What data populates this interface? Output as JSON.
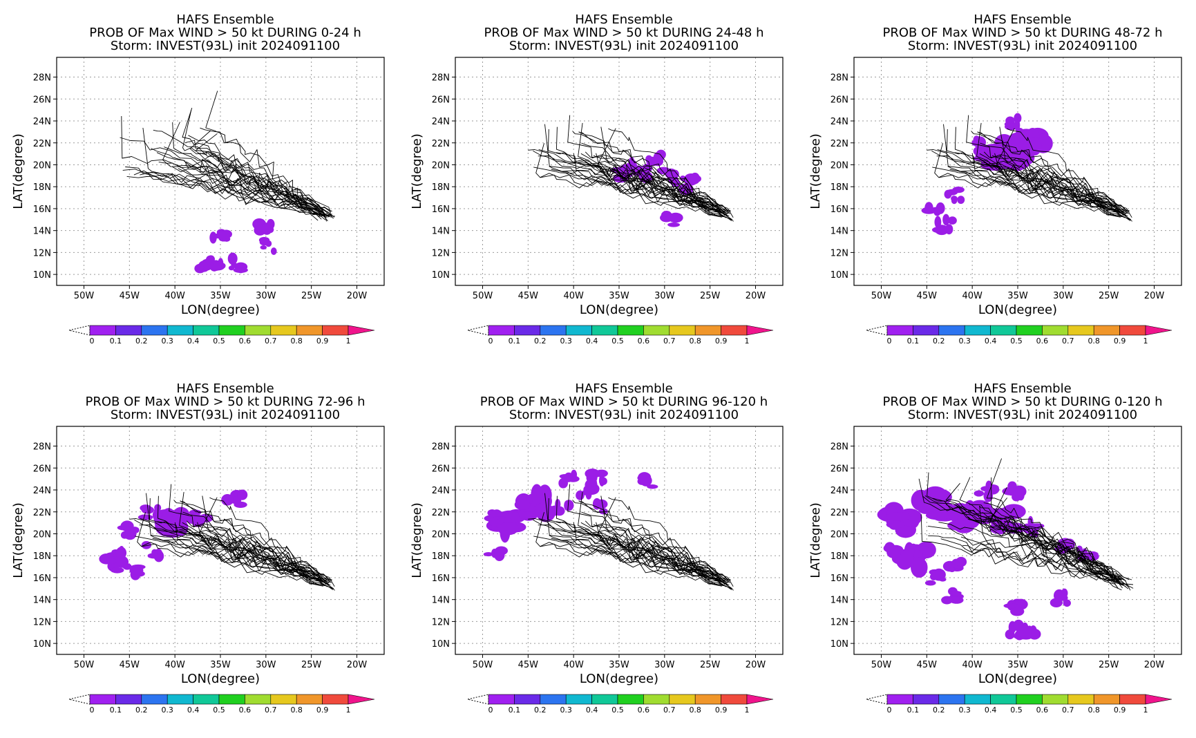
{
  "chart_data": [
    {
      "type": "heatmap",
      "title": "HAFS Ensemble",
      "subtitle": "PROB OF Max WIND > 50 kt DURING  0-24 h",
      "storm": "Storm: INVEST(93L) init 2024091100",
      "xlabel": "LON(degree)",
      "ylabel": "LAT(degree)",
      "xlim": [
        -53,
        -17
      ],
      "ylim": [
        9,
        29.8
      ],
      "xticks": [
        "50W",
        "45W",
        "40W",
        "35W",
        "30W",
        "25W",
        "20W"
      ],
      "yticks": [
        "10N",
        "12N",
        "14N",
        "16N",
        "18N",
        "20N",
        "22N",
        "24N",
        "26N",
        "28N"
      ],
      "grid": true,
      "prob_regions": [
        {
          "lon": -35.2,
          "lat": 11.2,
          "prob": 0.05
        },
        {
          "lon": -35.0,
          "lat": 13.3,
          "prob": 0.05
        },
        {
          "lon": -33.5,
          "lat": 10.9,
          "prob": 0.05
        },
        {
          "lon": -36.8,
          "lat": 10.9,
          "prob": 0.05
        },
        {
          "lon": -30.2,
          "lat": 14.3,
          "prob": 0.05
        },
        {
          "lon": -29.5,
          "lat": 12.6,
          "prob": 0.05
        }
      ]
    },
    {
      "type": "heatmap",
      "title": "HAFS Ensemble",
      "subtitle": "PROB OF Max WIND > 50 kt DURING 24-48 h",
      "storm": "Storm: INVEST(93L) init 2024091100",
      "xlabel": "LON(degree)",
      "ylabel": "LAT(degree)",
      "xlim": [
        -53,
        -17
      ],
      "ylim": [
        9,
        29.8
      ],
      "xticks": [
        "50W",
        "45W",
        "40W",
        "35W",
        "30W",
        "25W",
        "20W"
      ],
      "yticks": [
        "10N",
        "12N",
        "14N",
        "16N",
        "18N",
        "20N",
        "22N",
        "24N",
        "26N",
        "28N"
      ],
      "grid": true,
      "prob_regions": [
        {
          "lon": -33.5,
          "lat": 20.2,
          "prob": 0.05
        },
        {
          "lon": -32.5,
          "lat": 19.2,
          "prob": 0.05
        },
        {
          "lon": -35.0,
          "lat": 19.1,
          "prob": 0.05
        },
        {
          "lon": -29.5,
          "lat": 18.9,
          "prob": 0.05
        },
        {
          "lon": -31.0,
          "lat": 20.6,
          "prob": 0.05
        },
        {
          "lon": -27.3,
          "lat": 18.3,
          "prob": 0.05
        },
        {
          "lon": -29.0,
          "lat": 15.0,
          "prob": 0.05
        }
      ]
    },
    {
      "type": "heatmap",
      "title": "HAFS Ensemble",
      "subtitle": "PROB OF Max WIND > 50 kt DURING 48-72 h",
      "storm": "Storm: INVEST(93L) init 2024091100",
      "xlabel": "LON(degree)",
      "ylabel": "LAT(degree)",
      "xlim": [
        -53,
        -17
      ],
      "ylim": [
        9,
        29.8
      ],
      "xticks": [
        "50W",
        "45W",
        "40W",
        "35W",
        "30W",
        "25W",
        "20W"
      ],
      "yticks": [
        "10N",
        "12N",
        "14N",
        "16N",
        "18N",
        "20N",
        "22N",
        "24N",
        "26N",
        "28N"
      ],
      "grid": true,
      "prob_regions": [
        {
          "lon": -35.5,
          "lat": 21.2,
          "prob": 0.08
        },
        {
          "lon": -37.5,
          "lat": 20.5,
          "prob": 0.08
        },
        {
          "lon": -33.6,
          "lat": 21.8,
          "prob": 0.08
        },
        {
          "lon": -39.0,
          "lat": 21.7,
          "prob": 0.05
        },
        {
          "lon": -35.5,
          "lat": 23.9,
          "prob": 0.05
        },
        {
          "lon": -44.0,
          "lat": 15.8,
          "prob": 0.05
        },
        {
          "lon": -43.0,
          "lat": 14.6,
          "prob": 0.05
        },
        {
          "lon": -41.9,
          "lat": 17.2,
          "prob": 0.05
        }
      ]
    },
    {
      "type": "heatmap",
      "title": "HAFS Ensemble",
      "subtitle": "PROB OF Max WIND > 50 kt DURING 72-96 h",
      "storm": "Storm: INVEST(93L) init 2024091100",
      "xlabel": "LON(degree)",
      "ylabel": "LAT(degree)",
      "xlim": [
        -53,
        -17
      ],
      "ylim": [
        9,
        29.8
      ],
      "xticks": [
        "50W",
        "45W",
        "40W",
        "35W",
        "30W",
        "25W",
        "20W"
      ],
      "yticks": [
        "10N",
        "12N",
        "14N",
        "16N",
        "18N",
        "20N",
        "22N",
        "24N",
        "26N",
        "28N"
      ],
      "grid": true,
      "prob_regions": [
        {
          "lon": -40.7,
          "lat": 21.2,
          "prob": 0.08
        },
        {
          "lon": -42.7,
          "lat": 22.0,
          "prob": 0.05
        },
        {
          "lon": -37.3,
          "lat": 21.5,
          "prob": 0.05
        },
        {
          "lon": -45.0,
          "lat": 20.3,
          "prob": 0.05
        },
        {
          "lon": -46.0,
          "lat": 17.8,
          "prob": 0.05
        },
        {
          "lon": -44.7,
          "lat": 16.6,
          "prob": 0.05
        },
        {
          "lon": -47.1,
          "lat": 17.2,
          "prob": 0.05
        },
        {
          "lon": -42.4,
          "lat": 18.5,
          "prob": 0.05
        },
        {
          "lon": -33.4,
          "lat": 23.0,
          "prob": 0.05
        }
      ]
    },
    {
      "type": "heatmap",
      "title": "HAFS Ensemble",
      "subtitle": "PROB OF Max WIND > 50 kt DURING 96-120 h",
      "storm": "Storm: INVEST(93L) init 2024091100",
      "xlabel": "LON(degree)",
      "ylabel": "LAT(degree)",
      "xlim": [
        -53,
        -17
      ],
      "ylim": [
        9,
        29.8
      ],
      "xticks": [
        "50W",
        "45W",
        "40W",
        "35W",
        "30W",
        "25W",
        "20W"
      ],
      "yticks": [
        "10N",
        "12N",
        "14N",
        "16N",
        "18N",
        "20N",
        "22N",
        "24N",
        "26N",
        "28N"
      ],
      "grid": true,
      "prob_regions": [
        {
          "lon": -47.7,
          "lat": 21.0,
          "prob": 0.08
        },
        {
          "lon": -44.3,
          "lat": 22.7,
          "prob": 0.08
        },
        {
          "lon": -41.3,
          "lat": 22.6,
          "prob": 0.05
        },
        {
          "lon": -48.6,
          "lat": 17.9,
          "prob": 0.05
        },
        {
          "lon": -38.5,
          "lat": 23.9,
          "prob": 0.05
        },
        {
          "lon": -40.5,
          "lat": 24.9,
          "prob": 0.05
        },
        {
          "lon": -36.8,
          "lat": 22.2,
          "prob": 0.05
        },
        {
          "lon": -31.7,
          "lat": 24.7,
          "prob": 0.05
        },
        {
          "lon": -37.5,
          "lat": 25.2,
          "prob": 0.05
        }
      ]
    },
    {
      "type": "heatmap",
      "title": "HAFS Ensemble",
      "subtitle": "PROB OF Max WIND > 50 kt DURING 0-120 h",
      "storm": "Storm: INVEST(93L) init 2024091100",
      "xlabel": "LON(degree)",
      "ylabel": "LAT(degree)",
      "xlim": [
        -53,
        -17
      ],
      "ylim": [
        9,
        29.8
      ],
      "xticks": [
        "50W",
        "45W",
        "40W",
        "35W",
        "30W",
        "25W",
        "20W"
      ],
      "yticks": [
        "10N",
        "12N",
        "14N",
        "16N",
        "18N",
        "20N",
        "22N",
        "24N",
        "26N",
        "28N"
      ],
      "grid": true,
      "prob_regions": [
        {
          "lon": -47.7,
          "lat": 21.2,
          "prob": 0.08
        },
        {
          "lon": -44.3,
          "lat": 22.6,
          "prob": 0.08
        },
        {
          "lon": -40.0,
          "lat": 21.6,
          "prob": 0.08
        },
        {
          "lon": -36.0,
          "lat": 21.3,
          "prob": 0.08
        },
        {
          "lon": -46.2,
          "lat": 17.7,
          "prob": 0.08
        },
        {
          "lon": -48.3,
          "lat": 18.8,
          "prob": 0.05
        },
        {
          "lon": -44.0,
          "lat": 16.0,
          "prob": 0.05
        },
        {
          "lon": -42.5,
          "lat": 14.5,
          "prob": 0.05
        },
        {
          "lon": -41.7,
          "lat": 17.2,
          "prob": 0.05
        },
        {
          "lon": -38.5,
          "lat": 23.9,
          "prob": 0.05
        },
        {
          "lon": -35.2,
          "lat": 23.9,
          "prob": 0.05
        },
        {
          "lon": -33.6,
          "lat": 20.5,
          "prob": 0.05
        },
        {
          "lon": -29.5,
          "lat": 18.9,
          "prob": 0.05
        },
        {
          "lon": -27.4,
          "lat": 18.4,
          "prob": 0.05
        },
        {
          "lon": -35.1,
          "lat": 11.2,
          "prob": 0.05
        },
        {
          "lon": -33.5,
          "lat": 10.9,
          "prob": 0.05
        },
        {
          "lon": -35.1,
          "lat": 13.3,
          "prob": 0.05
        },
        {
          "lon": -30.0,
          "lat": 14.2,
          "prob": 0.05
        }
      ]
    }
  ],
  "colorbar": {
    "labels": [
      "0",
      "0.1",
      "0.2",
      "0.3",
      "0.4",
      "0.5",
      "0.6",
      "0.7",
      "0.8",
      "0.9",
      "1"
    ],
    "colors": [
      "#a020f0",
      "#6a2ae8",
      "#2c74f0",
      "#10b8d0",
      "#10c898",
      "#20d020",
      "#a0dc30",
      "#e6c81e",
      "#f0962a",
      "#f04a3c"
    ],
    "over_color": "#f0148c"
  },
  "colors": {
    "track": "#000000",
    "prob": "#9b1de6",
    "grid": "#9a9a9a"
  }
}
